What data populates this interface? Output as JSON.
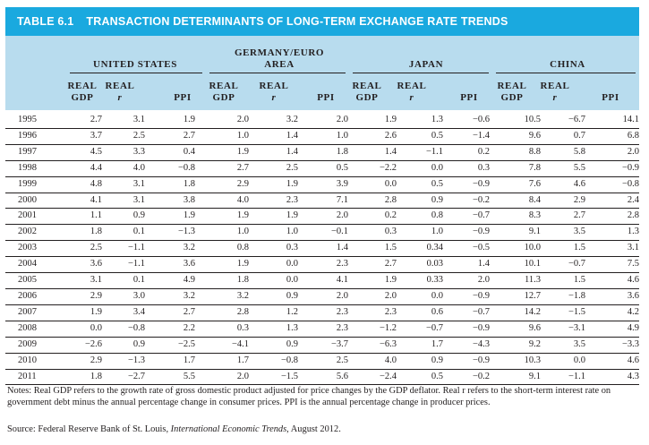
{
  "table": {
    "number": "TABLE 6.1",
    "title": "TRANSACTION DETERMINANTS OF LONG-TERM EXCHANGE RATE TRENDS",
    "groups": [
      {
        "name": "UNITED STATES"
      },
      {
        "name_line1": "GERMANY/EURO",
        "name_line2": "AREA"
      },
      {
        "name": "JAPAN"
      },
      {
        "name": "CHINA"
      }
    ],
    "subheaders": {
      "real_gdp_line1": "REAL",
      "real_gdp_line2": "GDP",
      "real_r_line1": "REAL",
      "real_r_line2": "r",
      "ppi": "PPI"
    },
    "rows": [
      {
        "year": "1995",
        "values": [
          "2.7",
          "3.1",
          "1.9",
          "2.0",
          "3.2",
          "2.0",
          "1.9",
          "1.3",
          "−0.6",
          "10.5",
          "−6.7",
          "14.1"
        ]
      },
      {
        "year": "1996",
        "values": [
          "3.7",
          "2.5",
          "2.7",
          "1.0",
          "1.4",
          "1.0",
          "2.6",
          "0.5",
          "−1.4",
          "9.6",
          "0.7",
          "6.8"
        ]
      },
      {
        "year": "1997",
        "values": [
          "4.5",
          "3.3",
          "0.4",
          "1.9",
          "1.4",
          "1.8",
          "1.4",
          "−1.1",
          "0.2",
          "8.8",
          "5.8",
          "2.0"
        ]
      },
      {
        "year": "1998",
        "values": [
          "4.4",
          "4.0",
          "−0.8",
          "2.7",
          "2.5",
          "0.5",
          "−2.2",
          "0.0",
          "0.3",
          "7.8",
          "5.5",
          "−0.9"
        ]
      },
      {
        "year": "1999",
        "values": [
          "4.8",
          "3.1",
          "1.8",
          "2.9",
          "1.9",
          "3.9",
          "0.0",
          "0.5",
          "−0.9",
          "7.6",
          "4.6",
          "−0.8"
        ]
      },
      {
        "year": "2000",
        "values": [
          "4.1",
          "3.1",
          "3.8",
          "4.0",
          "2.3",
          "7.1",
          "2.8",
          "0.9",
          "−0.2",
          "8.4",
          "2.9",
          "2.4"
        ]
      },
      {
        "year": "2001",
        "values": [
          "1.1",
          "0.9",
          "1.9",
          "1.9",
          "1.9",
          "2.0",
          "0.2",
          "0.8",
          "−0.7",
          "8.3",
          "2.7",
          "2.8"
        ]
      },
      {
        "year": "2002",
        "values": [
          "1.8",
          "0.1",
          "−1.3",
          "1.0",
          "1.0",
          "−0.1",
          "0.3",
          "1.0",
          "−0.9",
          "9.1",
          "3.5",
          "1.3"
        ]
      },
      {
        "year": "2003",
        "values": [
          "2.5",
          "−1.1",
          "3.2",
          "0.8",
          "0.3",
          "1.4",
          "1.5",
          "0.34",
          "−0.5",
          "10.0",
          "1.5",
          "3.1"
        ]
      },
      {
        "year": "2004",
        "values": [
          "3.6",
          "−1.1",
          "3.6",
          "1.9",
          "0.0",
          "2.3",
          "2.7",
          "0.03",
          "1.4",
          "10.1",
          "−0.7",
          "7.5"
        ]
      },
      {
        "year": "2005",
        "values": [
          "3.1",
          "0.1",
          "4.9",
          "1.8",
          "0.0",
          "4.1",
          "1.9",
          "0.33",
          "2.0",
          "11.3",
          "1.5",
          "4.6"
        ]
      },
      {
        "year": "2006",
        "values": [
          "2.9",
          "3.0",
          "3.2",
          "3.2",
          "0.9",
          "2.0",
          "2.0",
          "0.0",
          "−0.9",
          "12.7",
          "−1.8",
          "3.6"
        ]
      },
      {
        "year": "2007",
        "values": [
          "1.9",
          "3.4",
          "2.7",
          "2.8",
          "1.2",
          "2.3",
          "2.3",
          "0.6",
          "−0.7",
          "14.2",
          "−1.5",
          "4.2"
        ]
      },
      {
        "year": "2008",
        "values": [
          "0.0",
          "−0.8",
          "2.2",
          "0.3",
          "1.3",
          "2.3",
          "−1.2",
          "−0.7",
          "−0.9",
          "9.6",
          "−3.1",
          "4.9"
        ]
      },
      {
        "year": "2009",
        "values": [
          "−2.6",
          "0.9",
          "−2.5",
          "−4.1",
          "0.9",
          "−3.7",
          "−6.3",
          "1.7",
          "−4.3",
          "9.2",
          "3.5",
          "−3.3"
        ]
      },
      {
        "year": "2010",
        "values": [
          "2.9",
          "−1.3",
          "1.7",
          "1.7",
          "−0.8",
          "2.5",
          "4.0",
          "0.9",
          "−0.9",
          "10.3",
          "0.0",
          "4.6"
        ]
      },
      {
        "year": "2011",
        "values": [
          "1.8",
          "−2.7",
          "5.5",
          "2.0",
          "−1.5",
          "5.6",
          "−2.4",
          "0.5",
          "−0.2",
          "9.1",
          "−1.1",
          "4.3"
        ]
      }
    ]
  },
  "notes": "Notes: Real GDP refers to the growth rate of gross domestic product adjusted for price changes by the GDP deflator. Real r refers to the short-term interest rate on government debt minus the annual percentage change in consumer prices. PPI is the annual percentage change in producer prices.",
  "source": {
    "prefix": "Source: Federal Reserve Bank of St. Louis, ",
    "publication": "International Economic Trends",
    "suffix": ", August 2012."
  },
  "colors": {
    "title_bar": "#1aa9df",
    "header_band": "#b8dcee",
    "text": "#231f20"
  }
}
